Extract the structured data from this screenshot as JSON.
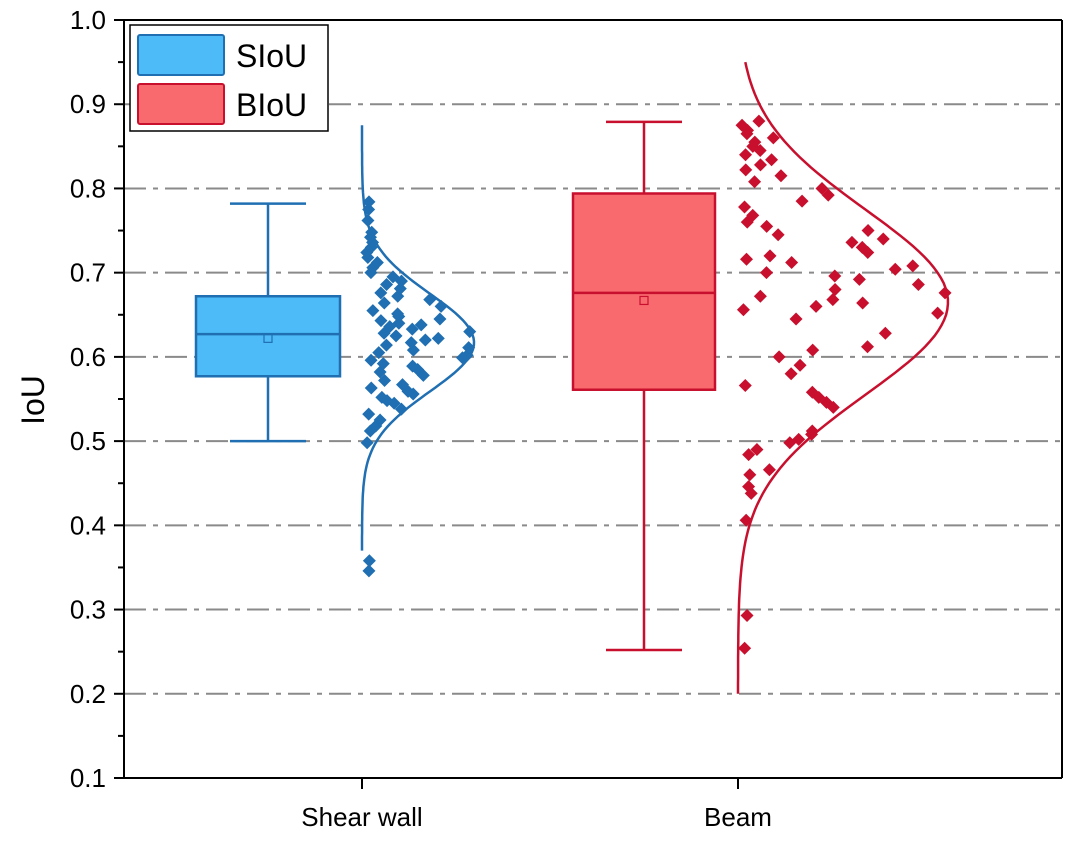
{
  "chart_data": {
    "type": "box-half-violin",
    "ylabel": "IoU",
    "xlabel": "",
    "ylim": [
      0.1,
      1.0
    ],
    "yticks": [
      0.1,
      0.2,
      0.3,
      0.4,
      0.5,
      0.6,
      0.7,
      0.8,
      0.9,
      1.0
    ],
    "ytick_labels": [
      "0.1",
      "0.2",
      "0.3",
      "0.4",
      "0.5",
      "0.6",
      "0.7",
      "0.8",
      "0.9",
      "1.0"
    ],
    "grid": "dash-dot horizontal at major ticks",
    "legend_position": "top-left",
    "categories": [
      "Shear wall",
      "Beam"
    ],
    "series": [
      {
        "name": "SIoU",
        "category": "Shear wall",
        "fill": "#4dbbf7",
        "stroke": "#1f6fb2",
        "box": {
          "whisker_low": 0.5,
          "q1": 0.577,
          "median": 0.627,
          "q3": 0.672,
          "whisker_high": 0.782,
          "mean": 0.622
        },
        "curve": {
          "mean": 0.617,
          "sd": 0.058,
          "range": [
            0.37,
            0.875
          ]
        },
        "points": [
          0.346,
          0.358,
          0.498,
          0.512,
          0.518,
          0.525,
          0.532,
          0.538,
          0.545,
          0.548,
          0.552,
          0.556,
          0.559,
          0.563,
          0.567,
          0.572,
          0.578,
          0.582,
          0.585,
          0.589,
          0.592,
          0.596,
          0.599,
          0.602,
          0.605,
          0.608,
          0.611,
          0.614,
          0.617,
          0.62,
          0.622,
          0.625,
          0.628,
          0.63,
          0.633,
          0.636,
          0.638,
          0.64,
          0.643,
          0.645,
          0.648,
          0.651,
          0.655,
          0.66,
          0.664,
          0.668,
          0.672,
          0.676,
          0.681,
          0.686,
          0.69,
          0.695,
          0.7,
          0.706,
          0.712,
          0.718,
          0.724,
          0.73,
          0.736,
          0.742,
          0.748,
          0.762,
          0.775,
          0.784
        ]
      },
      {
        "name": "BIoU",
        "category": "Beam",
        "fill": "#f86a6e",
        "stroke": "#c8102e",
        "box": {
          "whisker_low": 0.252,
          "q1": 0.561,
          "median": 0.676,
          "q3": 0.794,
          "whisker_high": 0.879,
          "mean": 0.667
        },
        "curve": {
          "mean": 0.665,
          "sd": 0.11,
          "range": [
            0.2,
            0.95
          ]
        },
        "points": [
          0.254,
          0.293,
          0.406,
          0.438,
          0.446,
          0.46,
          0.466,
          0.484,
          0.49,
          0.498,
          0.502,
          0.508,
          0.512,
          0.54,
          0.546,
          0.552,
          0.558,
          0.566,
          0.58,
          0.59,
          0.6,
          0.608,
          0.612,
          0.628,
          0.645,
          0.652,
          0.656,
          0.66,
          0.664,
          0.668,
          0.672,
          0.676,
          0.68,
          0.686,
          0.692,
          0.696,
          0.7,
          0.704,
          0.708,
          0.712,
          0.716,
          0.72,
          0.724,
          0.73,
          0.736,
          0.74,
          0.745,
          0.75,
          0.755,
          0.76,
          0.768,
          0.778,
          0.785,
          0.792,
          0.8,
          0.808,
          0.815,
          0.822,
          0.828,
          0.834,
          0.84,
          0.845,
          0.85,
          0.855,
          0.86,
          0.865,
          0.869,
          0.875,
          0.88
        ]
      }
    ]
  }
}
